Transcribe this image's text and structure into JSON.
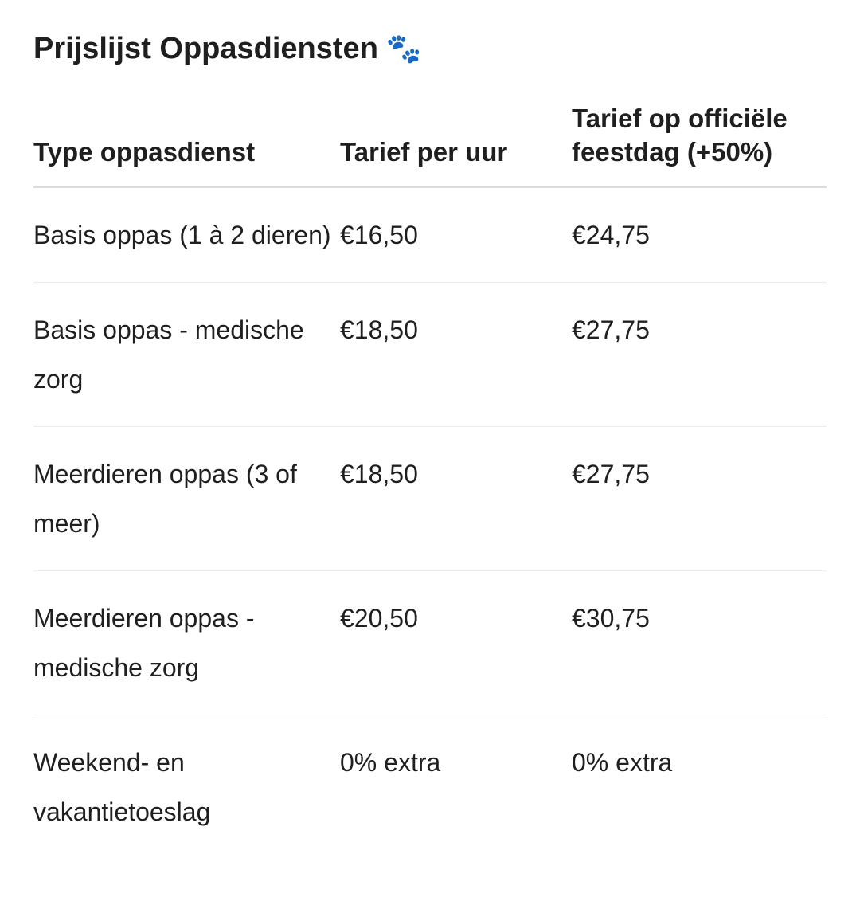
{
  "title": "Prijslijst Oppasdiensten",
  "title_icon": "paw-prints-icon",
  "table": {
    "headers": [
      "Type oppasdienst",
      "Tarief per uur",
      "Tarief op officiële feestdag (+50%)"
    ],
    "rows": [
      [
        "Basis oppas (1 à 2 dieren)",
        "€16,50",
        "€24,75"
      ],
      [
        "Basis oppas - medische zorg",
        "€18,50",
        "€27,75"
      ],
      [
        "Meerdieren oppas (3 of meer)",
        "€18,50",
        "€27,75"
      ],
      [
        "Meerdieren oppas - medische zorg",
        "€20,50",
        "€30,75"
      ],
      [
        "Weekend- en vakantietoeslag",
        "0% extra",
        "0% extra"
      ]
    ]
  }
}
